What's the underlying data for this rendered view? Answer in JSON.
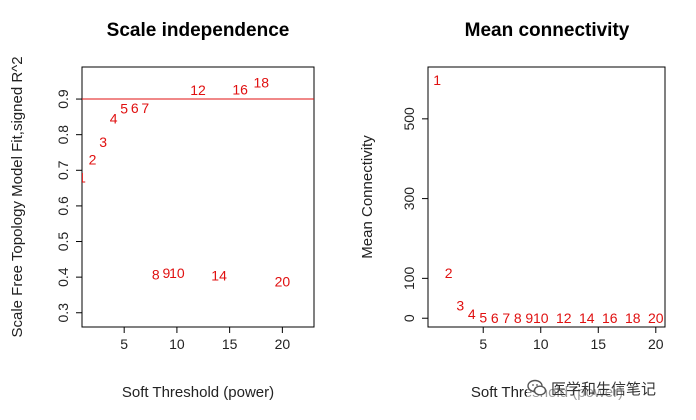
{
  "chart_data": [
    {
      "type": "scatter",
      "title": "Scale independence",
      "xlabel": "Soft Threshold (power)",
      "ylabel": "Scale Free Topology Model Fit,signed R^2",
      "xlim": [
        1,
        23
      ],
      "ylim": [
        0.26,
        0.99
      ],
      "xticks": [
        "5",
        "10",
        "15",
        "20"
      ],
      "yticks": [
        "0.3",
        "0.4",
        "0.5",
        "0.6",
        "0.7",
        "0.8",
        "0.9"
      ],
      "hline": 0.9,
      "hline_color": "#e01010",
      "marker_color": "#e01010",
      "points": [
        {
          "x": 1,
          "y": 0.68,
          "label": "1"
        },
        {
          "x": 2,
          "y": 0.73,
          "label": "2"
        },
        {
          "x": 3,
          "y": 0.78,
          "label": "3"
        },
        {
          "x": 4,
          "y": 0.845,
          "label": "4"
        },
        {
          "x": 5,
          "y": 0.873,
          "label": "5"
        },
        {
          "x": 6,
          "y": 0.875,
          "label": "6"
        },
        {
          "x": 7,
          "y": 0.875,
          "label": "7"
        },
        {
          "x": 8,
          "y": 0.408,
          "label": "8"
        },
        {
          "x": 9,
          "y": 0.412,
          "label": "9"
        },
        {
          "x": 10,
          "y": 0.412,
          "label": "10"
        },
        {
          "x": 12,
          "y": 0.925,
          "label": "12"
        },
        {
          "x": 14,
          "y": 0.405,
          "label": "14"
        },
        {
          "x": 16,
          "y": 0.927,
          "label": "16"
        },
        {
          "x": 18,
          "y": 0.946,
          "label": "18"
        },
        {
          "x": 20,
          "y": 0.388,
          "label": "20"
        }
      ]
    },
    {
      "type": "scatter",
      "title": "Mean connectivity",
      "xlabel": "Soft Threshold (power)",
      "ylabel": "Mean Connectivity",
      "xlim": [
        0.2,
        20.8
      ],
      "ylim": [
        -22,
        630
      ],
      "xticks": [
        "5",
        "10",
        "15",
        "20"
      ],
      "yticks": [
        "0",
        "100",
        "300",
        "500"
      ],
      "marker_color": "#e01010",
      "points": [
        {
          "x": 1,
          "y": 597,
          "label": "1"
        },
        {
          "x": 2,
          "y": 113,
          "label": "2"
        },
        {
          "x": 3,
          "y": 32,
          "label": "3"
        },
        {
          "x": 4,
          "y": 10,
          "label": "4"
        },
        {
          "x": 5,
          "y": 2,
          "label": "5"
        },
        {
          "x": 6,
          "y": 0,
          "label": "6"
        },
        {
          "x": 7,
          "y": 0,
          "label": "7"
        },
        {
          "x": 8,
          "y": 0,
          "label": "8"
        },
        {
          "x": 9,
          "y": 0,
          "label": "9"
        },
        {
          "x": 10,
          "y": 0,
          "label": "10"
        },
        {
          "x": 12,
          "y": 0,
          "label": "12"
        },
        {
          "x": 14,
          "y": 0,
          "label": "14"
        },
        {
          "x": 16,
          "y": 0,
          "label": "16"
        },
        {
          "x": 18,
          "y": 0,
          "label": "18"
        },
        {
          "x": 20,
          "y": 0,
          "label": "20"
        }
      ]
    }
  ],
  "watermark": {
    "text": "医学和生信笔记",
    "icon": "wechat-icon"
  }
}
